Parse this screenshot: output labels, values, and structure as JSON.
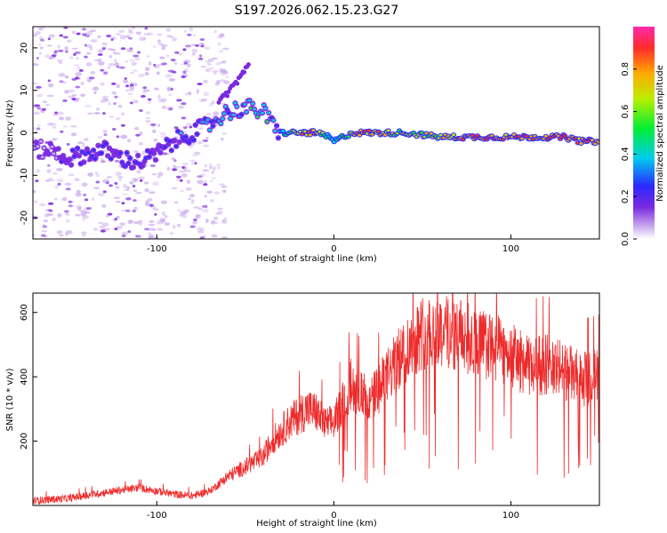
{
  "title": "S197.2026.062.15.23.G27",
  "colors": {
    "snr_line": "#ee2a2a",
    "spectrum_core": "#2a2aff",
    "spectrum_halo": "#7a2ae0",
    "spectrum_faint": "#c9a8ee",
    "spectrum_peak": "#ff2a2a"
  },
  "chart_data": [
    {
      "type": "heatmap",
      "title": "S197.2026.062.15.23.G27",
      "xlabel": "Height of straight line (km)",
      "ylabel": "Frequency (Hz)",
      "xlim": [
        -170,
        150
      ],
      "ylim": [
        -25,
        25
      ],
      "x_ticks": [
        -100,
        0,
        100
      ],
      "x_tick_labels": [
        "-100",
        "0",
        "100"
      ],
      "y_ticks": [
        -20,
        -10,
        0,
        10,
        20
      ],
      "y_tick_labels": [
        "-20",
        "-10",
        "0",
        "10",
        "20"
      ],
      "colorbar": {
        "label": "Normalized spectral amplitude",
        "range": [
          0.0,
          1.0
        ],
        "ticks": [
          0.0,
          0.2,
          0.4,
          0.6,
          0.8
        ],
        "tick_labels": [
          "0.0",
          "0.2",
          "0.4",
          "0.6",
          "0.8"
        ]
      },
      "ridge": {
        "x": [
          -160,
          -150,
          -140,
          -130,
          -120,
          -110,
          -100,
          -90,
          -80,
          -70,
          -60,
          -50,
          -40,
          -35,
          -30,
          -20,
          -10,
          -3,
          0,
          10,
          20,
          40,
          60,
          80,
          100,
          120,
          130,
          140,
          150
        ],
        "frequency": [
          -4,
          -6,
          -5,
          -4,
          -6,
          -7,
          -5,
          -2,
          0,
          2,
          5,
          6,
          5,
          2,
          0,
          0,
          0,
          -1,
          -2,
          0,
          0,
          0,
          -1,
          -1,
          -1,
          -1,
          -1,
          -2,
          -2
        ],
        "amplitude": [
          0.15,
          0.25,
          0.3,
          0.3,
          0.3,
          0.35,
          0.3,
          0.35,
          0.4,
          0.45,
          0.45,
          0.5,
          0.55,
          0.5,
          0.55,
          0.8,
          0.9,
          0.6,
          0.5,
          0.8,
          0.85,
          0.75,
          0.8,
          0.9,
          0.9,
          0.9,
          0.95,
          0.9,
          0.95
        ]
      },
      "secondary_ridge": {
        "x": [
          -65,
          -55,
          -48
        ],
        "frequency": [
          7,
          12,
          16
        ]
      }
    },
    {
      "type": "line",
      "title": "",
      "xlabel": "Height of straight line (km)",
      "ylabel": "SNR (10 * v/v)",
      "xlim": [
        -170,
        150
      ],
      "ylim": [
        0,
        660
      ],
      "x_ticks": [
        -100,
        0,
        100
      ],
      "x_tick_labels": [
        "-100",
        "0",
        "100"
      ],
      "y_ticks": [
        200,
        400,
        600
      ],
      "y_tick_labels": [
        "200",
        "400",
        "600"
      ],
      "series": [
        {
          "name": "SNR",
          "x": [
            -170,
            -150,
            -130,
            -110,
            -100,
            -90,
            -80,
            -70,
            -60,
            -50,
            -40,
            -35,
            -30,
            -25,
            -20,
            -15,
            -10,
            -5,
            0,
            5,
            10,
            15,
            20,
            30,
            40,
            50,
            60,
            70,
            80,
            90,
            100,
            110,
            120,
            130,
            140,
            150
          ],
          "values": [
            15,
            22,
            40,
            55,
            45,
            35,
            30,
            45,
            90,
            120,
            150,
            200,
            230,
            260,
            280,
            300,
            290,
            250,
            260,
            320,
            380,
            350,
            320,
            400,
            480,
            540,
            545,
            530,
            510,
            490,
            470,
            430,
            440,
            420,
            390,
            400
          ]
        }
      ]
    }
  ]
}
